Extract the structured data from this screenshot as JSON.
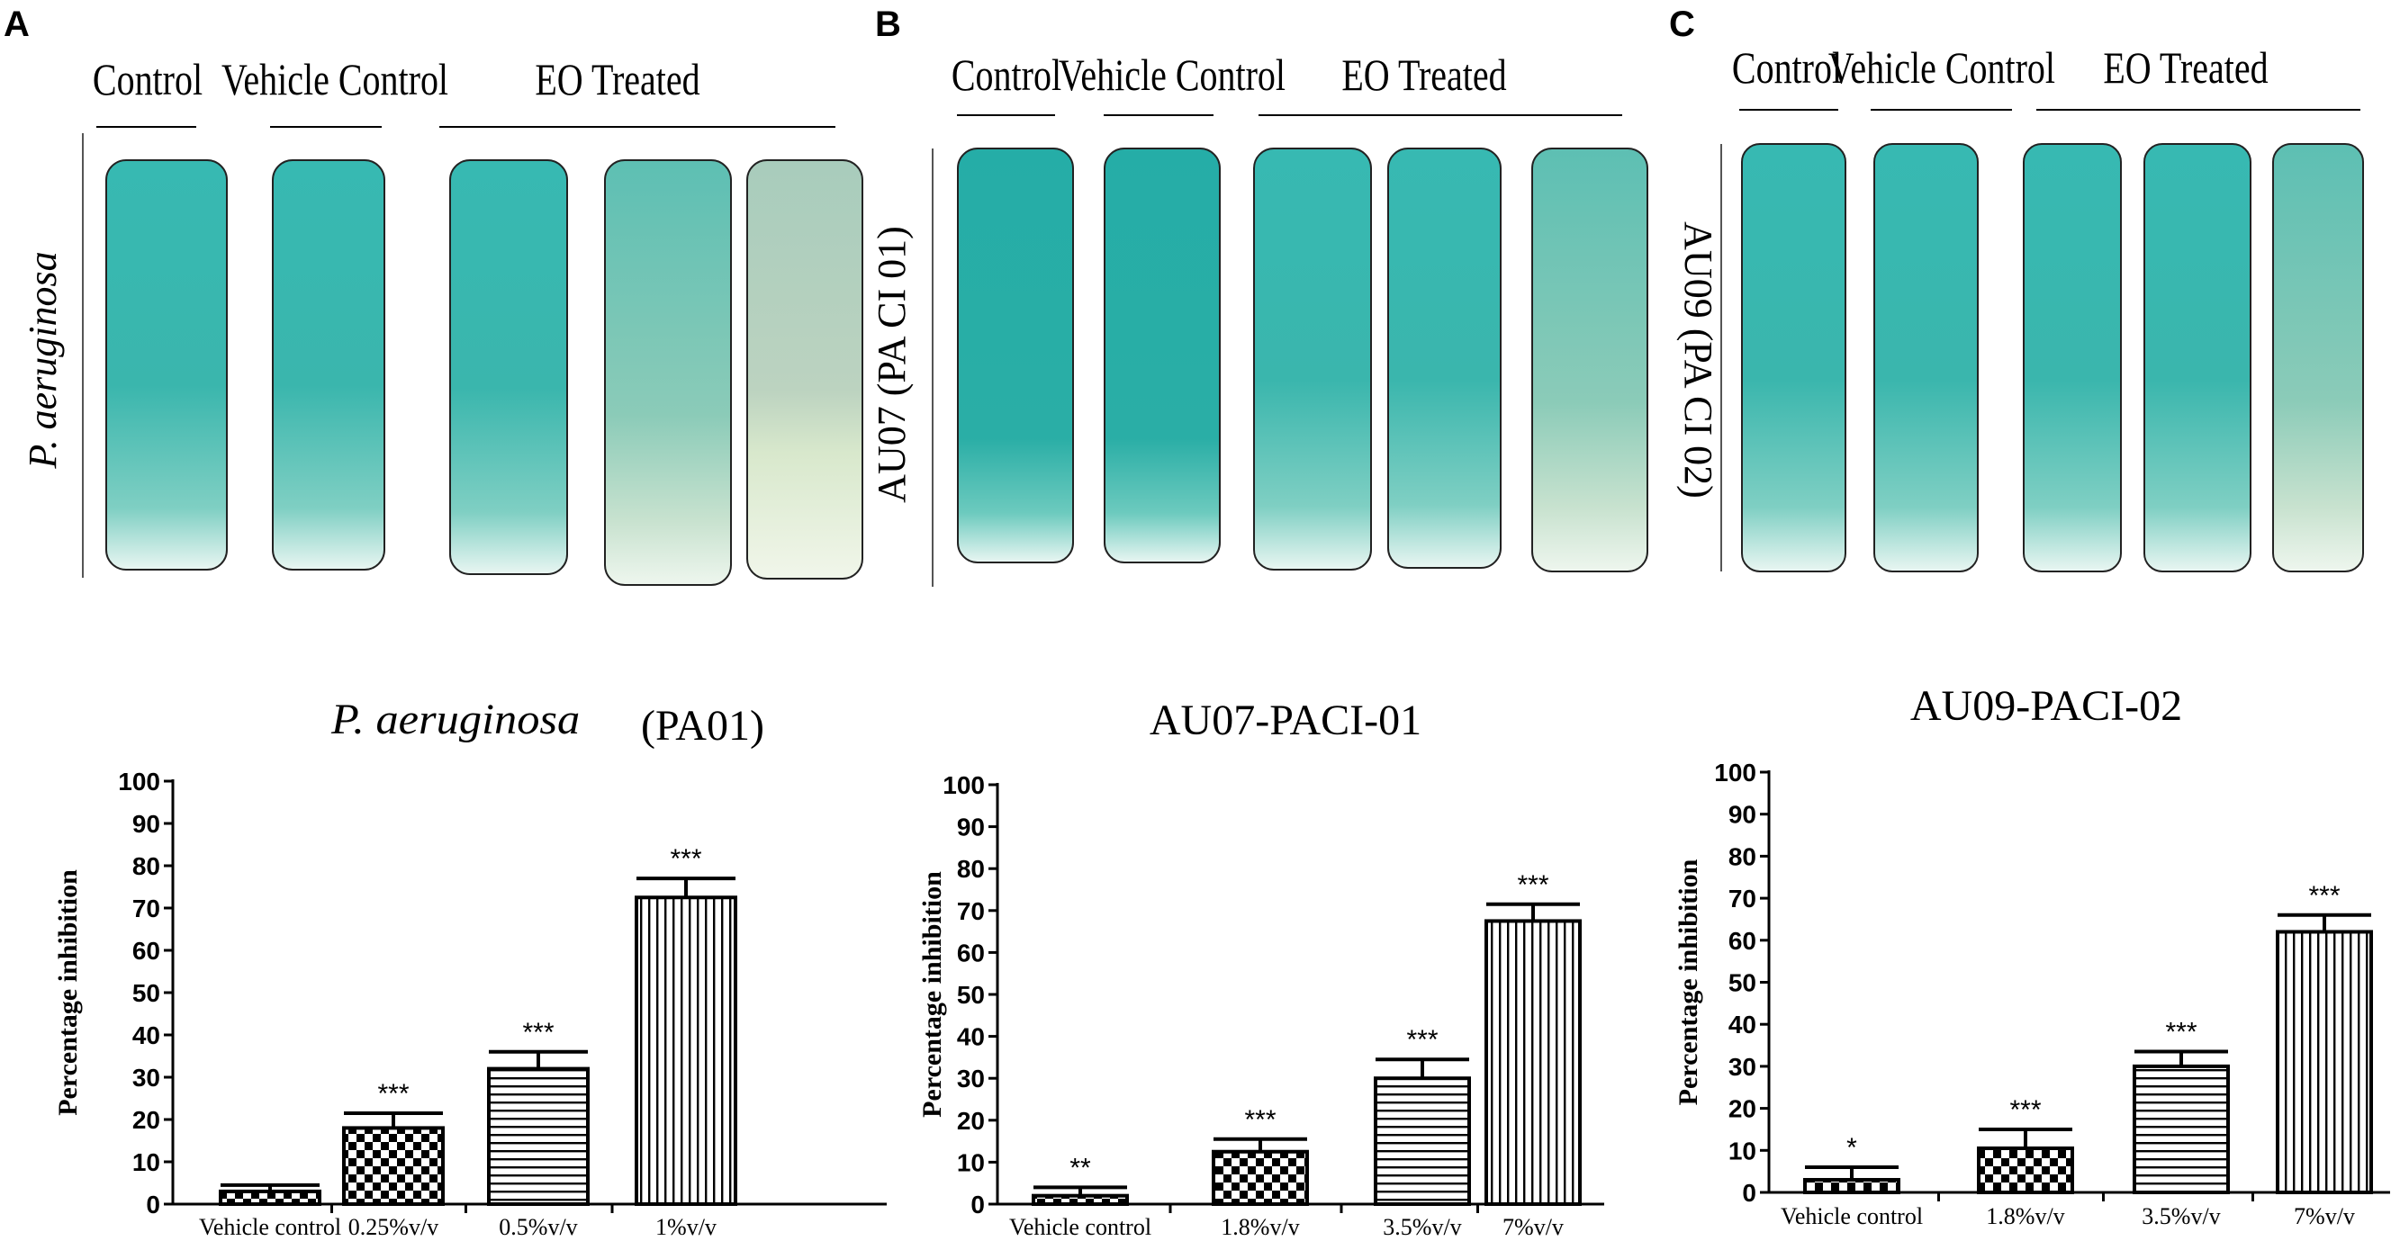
{
  "panels": [
    {
      "letter": "A",
      "side_label": "P. aeruginosa",
      "group_labels": [
        "Control",
        "Vehicle Control",
        "EO Treated"
      ],
      "tube_count": 5
    },
    {
      "letter": "B",
      "side_label": "AU07 (PA CI 01)",
      "group_labels": [
        "Control",
        "Vehicle Control",
        "EO Treated"
      ],
      "tube_count": 5
    },
    {
      "letter": "C",
      "side_label": "AU09 (PA CI 02)",
      "group_labels": [
        "Control",
        "Vehicle Control",
        "EO Treated"
      ],
      "tube_count": 5
    }
  ],
  "colors": {
    "tube_teal": "#2fb0a8",
    "tube_pale": "#c9d9bf",
    "tube_base": "#e9f6f2",
    "bar_stroke": "#000000"
  },
  "chart_data": [
    {
      "type": "bar",
      "title": "P. aeruginosa",
      "title_suffix": "(PA01)",
      "ylabel": "Percentage  inhibition",
      "xlabel": "",
      "ylim": [
        0,
        100
      ],
      "yticks": [
        0,
        10,
        20,
        30,
        40,
        50,
        60,
        70,
        80,
        90,
        100
      ],
      "categories": [
        "Vehicle control",
        "0.25%v/v",
        "0.5%v/v",
        "1%v/v"
      ],
      "values": [
        3,
        18,
        32,
        72.5
      ],
      "errors": [
        1.5,
        3.5,
        4,
        4.5
      ],
      "significance": [
        "",
        "***",
        "***",
        "***"
      ],
      "patterns": [
        "check",
        "check",
        "horizontal",
        "vertical"
      ]
    },
    {
      "type": "bar",
      "title": "AU07-PACI-01",
      "title_suffix": "",
      "ylabel": "Percentage  inhibition",
      "xlabel": "",
      "ylim": [
        0,
        100
      ],
      "yticks": [
        0,
        10,
        20,
        30,
        40,
        50,
        60,
        70,
        80,
        90,
        100
      ],
      "categories": [
        "Vehicle control",
        "1.8%v/v",
        "3.5%v/v",
        "7%v/v"
      ],
      "values": [
        2,
        12.5,
        30,
        67.5
      ],
      "errors": [
        2,
        3,
        4.5,
        4
      ],
      "significance": [
        "**",
        "***",
        "***",
        "***"
      ],
      "patterns": [
        "check",
        "check",
        "horizontal",
        "vertical"
      ]
    },
    {
      "type": "bar",
      "title": "AU09-PACI-02",
      "title_suffix": "",
      "ylabel": "Percentage  inhibition",
      "xlabel": "",
      "ylim": [
        0,
        100
      ],
      "yticks": [
        0,
        10,
        20,
        30,
        40,
        50,
        60,
        70,
        80,
        90,
        100
      ],
      "categories": [
        "Vehicle control",
        "1.8%v/v",
        "3.5%v/v",
        "7%v/v"
      ],
      "values": [
        3,
        10.5,
        30,
        62
      ],
      "errors": [
        3,
        4.5,
        3.5,
        4
      ],
      "significance": [
        "*",
        "***",
        "***",
        "***"
      ],
      "patterns": [
        "check",
        "check",
        "horizontal",
        "vertical"
      ]
    }
  ]
}
